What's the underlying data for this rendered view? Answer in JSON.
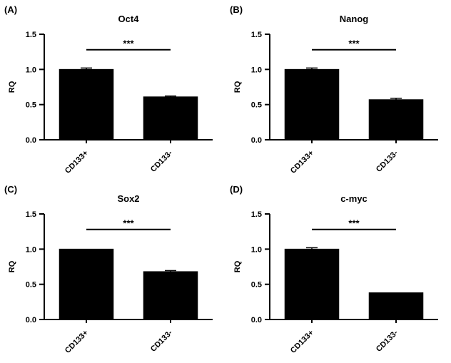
{
  "figure": {
    "description": "Four-panel bar chart figure comparing gene expression (RQ) between CD133+ and CD133- cells"
  },
  "chart_data": [
    {
      "type": "bar",
      "panel_label": "(A)",
      "title": "Oct4",
      "categories": [
        "CD133+",
        "CD133-"
      ],
      "values": [
        1.0,
        0.61
      ],
      "errors": [
        0.02,
        0.012
      ],
      "xlabel": "",
      "ylabel": "RQ",
      "ylim": [
        0,
        1.5
      ],
      "yticks": [
        0.0,
        0.5,
        1.0,
        1.5
      ],
      "bar_color": "#000000",
      "grid": false,
      "legend": "none",
      "significance": {
        "label": "***",
        "y": 1.28
      }
    },
    {
      "type": "bar",
      "panel_label": "(B)",
      "title": "Nanog",
      "categories": [
        "CD133+",
        "CD133-"
      ],
      "values": [
        1.0,
        0.57
      ],
      "errors": [
        0.02,
        0.02
      ],
      "xlabel": "",
      "ylabel": "RQ",
      "ylim": [
        0,
        1.5
      ],
      "yticks": [
        0.0,
        0.5,
        1.0,
        1.5
      ],
      "bar_color": "#000000",
      "grid": false,
      "legend": "none",
      "significance": {
        "label": "***",
        "y": 1.28
      }
    },
    {
      "type": "bar",
      "panel_label": "(C)",
      "title": "Sox2",
      "categories": [
        "CD133+",
        "CD133-"
      ],
      "values": [
        1.0,
        0.68
      ],
      "errors": [
        0,
        0.015
      ],
      "xlabel": "",
      "ylabel": "RQ",
      "ylim": [
        0,
        1.5
      ],
      "yticks": [
        0.0,
        0.5,
        1.0,
        1.5
      ],
      "bar_color": "#000000",
      "grid": false,
      "legend": "none",
      "significance": {
        "label": "***",
        "y": 1.28
      }
    },
    {
      "type": "bar",
      "panel_label": "(D)",
      "title": "c-myc",
      "categories": [
        "CD133+",
        "CD133-"
      ],
      "values": [
        1.0,
        0.38
      ],
      "errors": [
        0.02,
        0
      ],
      "xlabel": "",
      "ylabel": "RQ",
      "ylim": [
        0,
        1.5
      ],
      "yticks": [
        0.0,
        0.5,
        1.0,
        1.5
      ],
      "bar_color": "#000000",
      "grid": false,
      "legend": "none",
      "significance": {
        "label": "***",
        "y": 1.28
      }
    }
  ]
}
